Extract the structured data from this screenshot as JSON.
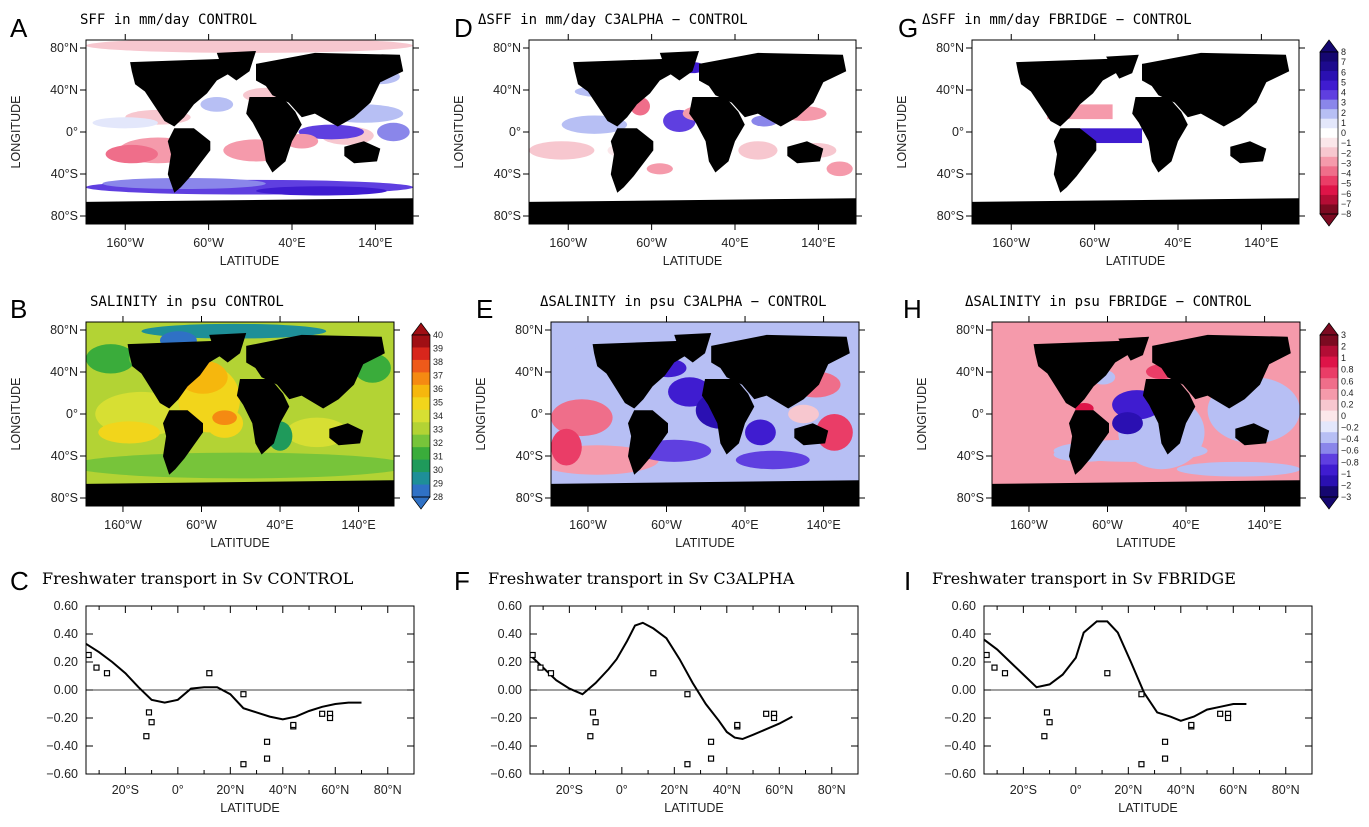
{
  "colors": {
    "land": "#000000",
    "ocean_white": "#ffffff",
    "blue_scale": [
      "#e3e7fb",
      "#b7bff4",
      "#8a86ea",
      "#5f3fe0",
      "#3f1cd0",
      "#2a10b2",
      "#1d0a8e",
      "#150770"
    ],
    "red_scale": [
      "#fbe7ea",
      "#f7c7cf",
      "#f59aab",
      "#ef6e8a",
      "#ea3d67",
      "#de1448",
      "#b30d35",
      "#7c0a21"
    ],
    "salinity_scale": [
      "#c534e2",
      "#6b1cd3",
      "#3a4fd6",
      "#2f71c5",
      "#1e8f98",
      "#1f9a5b",
      "#3aac3b",
      "#77c43a",
      "#b3d334",
      "#d7df33",
      "#f2d51b",
      "#f6b70d",
      "#f58a12",
      "#ee5a1a",
      "#d8261c",
      "#a00f14"
    ]
  },
  "maps": [
    {
      "id": "A",
      "title": "SFF in mm/day CONTROL",
      "kind": "sff_control",
      "ylabel": "LONGITUDE",
      "xlabel": "LATITUDE",
      "xticks": [
        "160°W",
        "60°W",
        "40°E",
        "140°E"
      ],
      "yticks": [
        "80°N",
        "40°N",
        "0°",
        "40°S",
        "80°S"
      ]
    },
    {
      "id": "D",
      "title": "ΔSFF in mm/day C3ALPHA − CONTROL",
      "kind": "sff_diff",
      "ylabel": "LONGITUDE",
      "xlabel": "LATITUDE",
      "xticks": [
        "160°W",
        "60°W",
        "40°E",
        "140°E"
      ],
      "yticks": [
        "80°N",
        "40°N",
        "0°",
        "40°S",
        "80°S"
      ]
    },
    {
      "id": "G",
      "title": "ΔSFF in mm/day FBRIDGE − CONTROL",
      "kind": "sff_bridge",
      "ylabel": "LONGITUDE",
      "xlabel": "LATITUDE",
      "xticks": [
        "160°W",
        "60°W",
        "40°E",
        "140°E"
      ],
      "yticks": [
        "80°N",
        "40°N",
        "0°",
        "40°S",
        "80°S"
      ]
    },
    {
      "id": "B",
      "title": "SALINITY in psu CONTROL",
      "kind": "sal_control",
      "ylabel": "LONGITUDE",
      "xlabel": "LATITUDE",
      "xticks": [
        "160°W",
        "60°W",
        "40°E",
        "140°E"
      ],
      "yticks": [
        "80°N",
        "40°N",
        "0°",
        "40°S",
        "80°S"
      ]
    },
    {
      "id": "E",
      "title": "ΔSALINITY in psu C3ALPHA − CONTROL",
      "kind": "sal_diff",
      "ylabel": "LONGITUDE",
      "xlabel": "LATITUDE",
      "xticks": [
        "160°W",
        "60°W",
        "40°E",
        "140°E"
      ],
      "yticks": [
        "80°N",
        "40°N",
        "0°",
        "40°S",
        "80°S"
      ]
    },
    {
      "id": "H",
      "title": "ΔSALINITY in psu FBRIDGE − CONTROL",
      "kind": "sal_bridge",
      "ylabel": "LONGITUDE",
      "xlabel": "LATITUDE",
      "xticks": [
        "160°W",
        "60°W",
        "40°E",
        "140°E"
      ],
      "yticks": [
        "80°N",
        "40°N",
        "0°",
        "40°S",
        "80°S"
      ]
    }
  ],
  "colorbars": {
    "sff": [
      "8",
      "7",
      "6",
      "5",
      "4",
      "3",
      "2",
      "1",
      "0",
      "−1",
      "−2",
      "−3",
      "−4",
      "−5",
      "−6",
      "−7",
      "−8"
    ],
    "salinity": [
      "40",
      "39",
      "38",
      "37",
      "36",
      "35",
      "34",
      "33",
      "32",
      "31",
      "30",
      "29",
      "28"
    ],
    "dsal": [
      "3",
      "2",
      "1",
      "0.8",
      "0.6",
      "0.4",
      "0.2",
      "0",
      "−0.2",
      "−0.4",
      "−0.6",
      "−0.8",
      "−1",
      "−2",
      "−3"
    ]
  },
  "chart_data": [
    {
      "id": "C",
      "type": "line",
      "title": "Freshwater transport in Sv CONTROL",
      "xlabel": "LATITUDE",
      "xlim": [
        -35,
        90
      ],
      "ylim": [
        -0.6,
        0.6
      ],
      "xticks": [
        "20°S",
        "0°",
        "20°N",
        "40°N",
        "60°N",
        "80°N"
      ],
      "yticks": [
        "0.60",
        "0.40",
        "0.20",
        "0.00",
        "−0.20",
        "−0.40",
        "−0.60"
      ],
      "series": [
        {
          "values": [
            [
              -35,
              0.33
            ],
            [
              -30,
              0.27
            ],
            [
              -25,
              0.2
            ],
            [
              -20,
              0.12
            ],
            [
              -15,
              0.02
            ],
            [
              -10,
              -0.07
            ],
            [
              -5,
              -0.09
            ],
            [
              0,
              -0.07
            ],
            [
              5,
              0.01
            ],
            [
              10,
              0.02
            ],
            [
              15,
              0.02
            ],
            [
              20,
              -0.03
            ],
            [
              25,
              -0.13
            ],
            [
              30,
              -0.16
            ],
            [
              35,
              -0.19
            ],
            [
              40,
              -0.21
            ],
            [
              45,
              -0.19
            ],
            [
              50,
              -0.15
            ],
            [
              55,
              -0.12
            ],
            [
              60,
              -0.1
            ],
            [
              65,
              -0.09
            ],
            [
              70,
              -0.09
            ]
          ]
        }
      ],
      "points": [
        [
          -34,
          0.25
        ],
        [
          -31,
          0.16
        ],
        [
          -27,
          0.12
        ],
        [
          -12,
          -0.33
        ],
        [
          -11,
          -0.16
        ],
        [
          -10,
          -0.23
        ],
        [
          12,
          0.12
        ],
        [
          25,
          -0.53
        ],
        [
          25,
          -0.03
        ],
        [
          34,
          -0.49
        ],
        [
          34,
          -0.37
        ],
        [
          44,
          -0.26
        ],
        [
          44,
          -0.25
        ],
        [
          55,
          -0.17
        ],
        [
          58,
          -0.17
        ],
        [
          58,
          -0.2
        ]
      ]
    },
    {
      "id": "F",
      "type": "line",
      "title": "Freshwater transport in Sv C3ALPHA",
      "xlabel": "LATITUDE",
      "xlim": [
        -35,
        90
      ],
      "ylim": [
        -0.6,
        0.6
      ],
      "xticks": [
        "20°S",
        "0°",
        "20°N",
        "40°N",
        "60°N",
        "80°N"
      ],
      "yticks": [
        "0.60",
        "0.40",
        "0.20",
        "0.00",
        "−0.20",
        "−0.40",
        "−0.60"
      ],
      "series": [
        {
          "values": [
            [
              -35,
              0.25
            ],
            [
              -30,
              0.16
            ],
            [
              -25,
              0.07
            ],
            [
              -20,
              0.01
            ],
            [
              -15,
              -0.03
            ],
            [
              -10,
              0.05
            ],
            [
              -5,
              0.15
            ],
            [
              -2,
              0.22
            ],
            [
              2,
              0.35
            ],
            [
              5,
              0.46
            ],
            [
              8,
              0.48
            ],
            [
              12,
              0.44
            ],
            [
              17,
              0.37
            ],
            [
              22,
              0.22
            ],
            [
              27,
              0.05
            ],
            [
              32,
              -0.1
            ],
            [
              37,
              -0.22
            ],
            [
              40,
              -0.3
            ],
            [
              43,
              -0.34
            ],
            [
              46,
              -0.35
            ],
            [
              50,
              -0.32
            ],
            [
              55,
              -0.28
            ],
            [
              60,
              -0.24
            ],
            [
              65,
              -0.19
            ]
          ]
        }
      ],
      "points": [
        [
          -34,
          0.25
        ],
        [
          -31,
          0.16
        ],
        [
          -27,
          0.12
        ],
        [
          -12,
          -0.33
        ],
        [
          -11,
          -0.16
        ],
        [
          -10,
          -0.23
        ],
        [
          12,
          0.12
        ],
        [
          25,
          -0.53
        ],
        [
          25,
          -0.03
        ],
        [
          34,
          -0.49
        ],
        [
          34,
          -0.37
        ],
        [
          44,
          -0.26
        ],
        [
          44,
          -0.25
        ],
        [
          55,
          -0.17
        ],
        [
          58,
          -0.17
        ],
        [
          58,
          -0.2
        ]
      ]
    },
    {
      "id": "I",
      "type": "line",
      "title": "Freshwater transport in Sv FBRIDGE",
      "xlabel": "LATITUDE",
      "xlim": [
        -35,
        90
      ],
      "ylim": [
        -0.6,
        0.6
      ],
      "xticks": [
        "20°S",
        "0°",
        "20°N",
        "40°N",
        "60°N",
        "80°N"
      ],
      "yticks": [
        "0.60",
        "0.40",
        "0.20",
        "0.00",
        "−0.20",
        "−0.40",
        "−0.60"
      ],
      "series": [
        {
          "values": [
            [
              -35,
              0.36
            ],
            [
              -30,
              0.29
            ],
            [
              -25,
              0.2
            ],
            [
              -20,
              0.11
            ],
            [
              -15,
              0.02
            ],
            [
              -10,
              0.04
            ],
            [
              -5,
              0.11
            ],
            [
              0,
              0.23
            ],
            [
              3,
              0.41
            ],
            [
              8,
              0.49
            ],
            [
              12,
              0.49
            ],
            [
              16,
              0.41
            ],
            [
              21,
              0.2
            ],
            [
              26,
              -0.02
            ],
            [
              31,
              -0.16
            ],
            [
              36,
              -0.19
            ],
            [
              40,
              -0.22
            ],
            [
              45,
              -0.19
            ],
            [
              50,
              -0.14
            ],
            [
              55,
              -0.12
            ],
            [
              60,
              -0.1
            ],
            [
              65,
              -0.1
            ]
          ]
        }
      ],
      "points": [
        [
          -34,
          0.25
        ],
        [
          -31,
          0.16
        ],
        [
          -27,
          0.12
        ],
        [
          -12,
          -0.33
        ],
        [
          -11,
          -0.16
        ],
        [
          -10,
          -0.23
        ],
        [
          12,
          0.12
        ],
        [
          25,
          -0.53
        ],
        [
          25,
          -0.03
        ],
        [
          34,
          -0.49
        ],
        [
          34,
          -0.37
        ],
        [
          44,
          -0.26
        ],
        [
          44,
          -0.25
        ],
        [
          55,
          -0.17
        ],
        [
          58,
          -0.17
        ],
        [
          58,
          -0.2
        ]
      ]
    }
  ]
}
